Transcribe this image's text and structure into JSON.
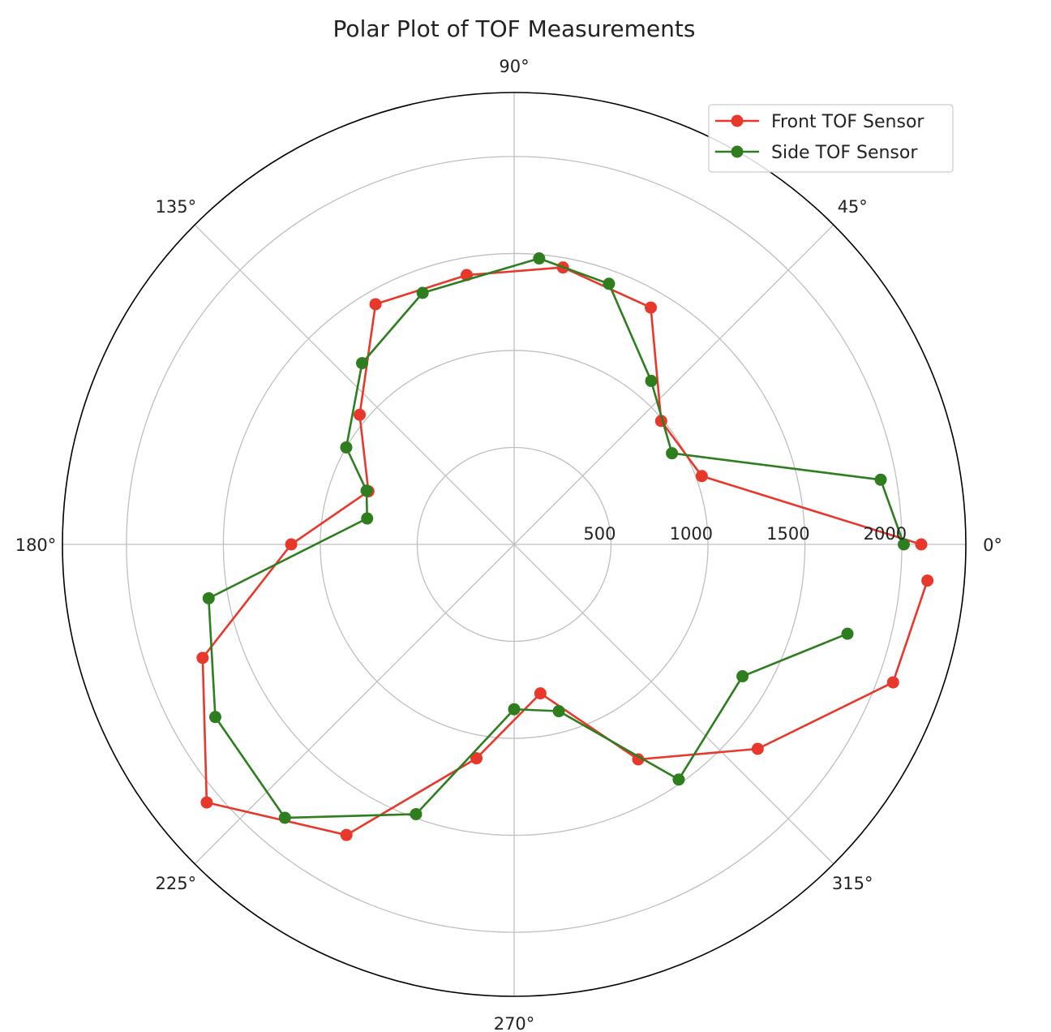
{
  "chart_data": {
    "type": "line",
    "projection": "polar",
    "title": "Polar Plot of TOF Measurements",
    "angle_ticks_deg": [
      0,
      45,
      90,
      135,
      180,
      225,
      270,
      315
    ],
    "angle_tick_labels": [
      "0°",
      "45°",
      "90°",
      "135°",
      "180°",
      "225°",
      "270°",
      "315°"
    ],
    "radial_ticks": [
      500,
      1000,
      1500,
      2000
    ],
    "radial_tick_labels": [
      "500",
      "1000",
      "1500",
      "2000"
    ],
    "rlim": [
      0,
      2330
    ],
    "grid": true,
    "legend": "top-right",
    "series": [
      {
        "name": "Front TOF Sensor",
        "color": "#e8382b",
        "points": [
          {
            "theta": 0,
            "r": 2100
          },
          {
            "theta": 20,
            "r": 1030
          },
          {
            "theta": 40,
            "r": 990
          },
          {
            "theta": 60,
            "r": 1410
          },
          {
            "theta": 80,
            "r": 1450
          },
          {
            "theta": 100,
            "r": 1410
          },
          {
            "theta": 120,
            "r": 1430
          },
          {
            "theta": 140,
            "r": 1040
          },
          {
            "theta": 160,
            "r": 800
          },
          {
            "theta": 180,
            "r": 1150
          },
          {
            "theta": 200,
            "r": 1710
          },
          {
            "theta": 220,
            "r": 2070
          },
          {
            "theta": 240,
            "r": 1730
          },
          {
            "theta": 260,
            "r": 1120
          },
          {
            "theta": 280,
            "r": 780
          },
          {
            "theta": 300,
            "r": 1280
          },
          {
            "theta": 320,
            "r": 1640
          },
          {
            "theta": 340,
            "r": 2080
          },
          {
            "theta": 355,
            "r": 2140
          }
        ]
      },
      {
        "name": "Side TOF Sensor",
        "color": "#2e7d1f",
        "points": [
          {
            "theta": 0,
            "r": 2010
          },
          {
            "theta": 10,
            "r": 1920
          },
          {
            "theta": 30,
            "r": 940
          },
          {
            "theta": 50,
            "r": 1100
          },
          {
            "theta": 70,
            "r": 1430
          },
          {
            "theta": 85,
            "r": 1480
          },
          {
            "theta": 110,
            "r": 1380
          },
          {
            "theta": 130,
            "r": 1220
          },
          {
            "theta": 150,
            "r": 1000
          },
          {
            "theta": 160,
            "r": 810
          },
          {
            "theta": 170,
            "r": 770
          },
          {
            "theta": 190,
            "r": 1600
          },
          {
            "theta": 210,
            "r": 1780
          },
          {
            "theta": 230,
            "r": 1840
          },
          {
            "theta": 250,
            "r": 1480
          },
          {
            "theta": 270,
            "r": 850
          },
          {
            "theta": 285,
            "r": 890
          },
          {
            "theta": 305,
            "r": 1480
          },
          {
            "theta": 330,
            "r": 1360
          },
          {
            "theta": 345,
            "r": 1780
          }
        ]
      }
    ]
  }
}
